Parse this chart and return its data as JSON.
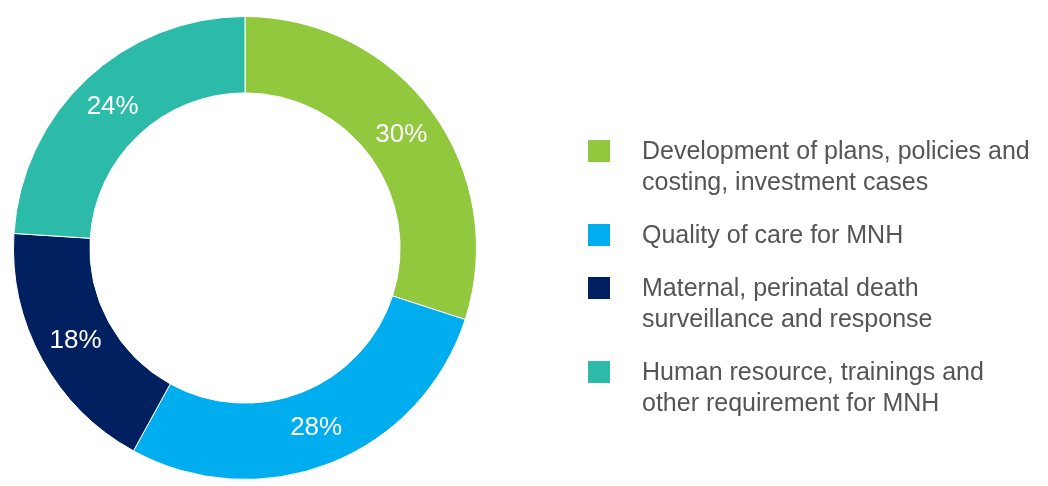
{
  "chart_data": {
    "type": "donut",
    "categories": [
      "Development of plans, policies and costing, investment cases",
      "Quality of care for MNH",
      "Maternal, perinatal death surveillance and response",
      "Human resource, trainings and other requirement for MNH"
    ],
    "values": [
      30,
      28,
      18,
      24
    ],
    "colors": [
      "#92c83e",
      "#00aeef",
      "#002060",
      "#2bbba8"
    ],
    "value_labels": [
      "30%",
      "28%",
      "18%",
      "24%"
    ],
    "legend": "right"
  }
}
